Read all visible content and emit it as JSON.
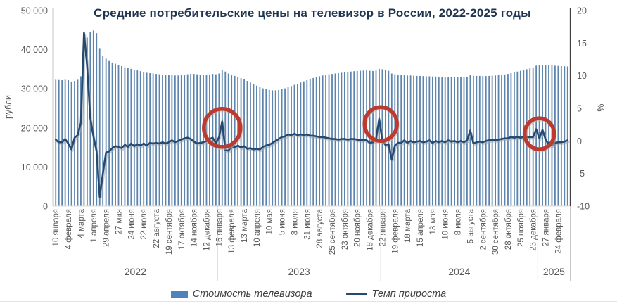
{
  "chart_data": {
    "type": "combo_bar_line",
    "title": "Средние потребительские цены на телевизор в России, 2022-2025 годы",
    "grid": false,
    "legend_position": "bottom",
    "left_axis": {
      "label": "рубли",
      "min": 0,
      "max": 50000,
      "ticks": [
        {
          "v": 0,
          "t": "0"
        },
        {
          "v": 10000,
          "t": "10 000"
        },
        {
          "v": 20000,
          "t": "20 000"
        },
        {
          "v": 30000,
          "t": "30 000"
        },
        {
          "v": 40000,
          "t": "40 000"
        },
        {
          "v": 50000,
          "t": "50 000"
        }
      ]
    },
    "right_axis": {
      "label": "%",
      "min": -10,
      "max": 20,
      "ticks": [
        {
          "v": -10,
          "t": "-10"
        },
        {
          "v": -5,
          "t": "-5"
        },
        {
          "v": 0,
          "t": "0"
        },
        {
          "v": 5,
          "t": "5"
        },
        {
          "v": 10,
          "t": "10"
        },
        {
          "v": 15,
          "t": "15"
        },
        {
          "v": 20,
          "t": "20"
        }
      ]
    },
    "x_unit": "week",
    "weeks_per_label": 4,
    "x_labels": [
      "10 января",
      "4 февраля",
      "4 марта",
      "1 апреля",
      "29 апреля",
      "27 мая",
      "24 июня",
      "22 июля",
      "22 августа",
      "19 сентября",
      "17 октября",
      "14 ноября",
      "12 декабря",
      "16 января",
      "13 февраля",
      "13 марта",
      "10 апреля",
      "10 мая",
      "5 июня",
      "3 июля",
      "31 июля",
      "28 августа",
      "25 сентября",
      "23 октября",
      "20 ноября",
      "18 декабря",
      "22 января",
      "19 февраля",
      "18 марта",
      "15 апреля",
      "13 мая",
      "10 июня",
      "8 июля",
      "5 августа",
      "2 сентября",
      "30 сентября",
      "28 октября",
      "25 ноября",
      "23 декабря",
      "27 января",
      "24 февраля"
    ],
    "year_groups": [
      {
        "label": "2022",
        "from_week": 0,
        "to_week": 52
      },
      {
        "label": "2023",
        "from_week": 52,
        "to_week": 104
      },
      {
        "label": "2024",
        "from_week": 104,
        "to_week": 154
      },
      {
        "label": "2025",
        "from_week": 154,
        "to_week": 164
      }
    ],
    "series": [
      {
        "name": "Стоимость телевизора",
        "type": "bar",
        "axis": "left",
        "color": "#5d84ad",
        "values": [
          32300,
          32250,
          32200,
          32300,
          32200,
          31850,
          32000,
          32300,
          33200,
          38700,
          43100,
          44600,
          44900,
          44200,
          40400,
          38400,
          37700,
          37100,
          36700,
          36400,
          36100,
          35800,
          35500,
          35300,
          35100,
          34900,
          34700,
          34500,
          34300,
          34100,
          34000,
          33900,
          33800,
          33700,
          33600,
          33500,
          33450,
          33450,
          33400,
          33400,
          33450,
          33550,
          33700,
          33800,
          33800,
          33700,
          33600,
          33550,
          33550,
          33650,
          33800,
          33700,
          33900,
          34900,
          34400,
          33900,
          33600,
          33300,
          33000,
          32700,
          32400,
          32000,
          31600,
          31200,
          30800,
          30400,
          30100,
          29900,
          29700,
          29600,
          29600,
          29700,
          29900,
          30100,
          30400,
          30700,
          31000,
          31300,
          31600,
          31900,
          32200,
          32500,
          32750,
          33000,
          33200,
          33400,
          33550,
          33700,
          33800,
          33900,
          34000,
          34100,
          34200,
          34300,
          34400,
          34500,
          34550,
          34600,
          34650,
          34700,
          34600,
          34550,
          34650,
          35100,
          35000,
          34800,
          34600,
          33900,
          33700,
          33600,
          33500,
          33500,
          33400,
          33400,
          33350,
          33300,
          33300,
          33250,
          33200,
          33200,
          33150,
          33150,
          33100,
          33100,
          33050,
          33050,
          33000,
          33000,
          32950,
          32950,
          32900,
          32950,
          33450,
          33350,
          33300,
          33300,
          33250,
          33250,
          33300,
          33350,
          33400,
          33450,
          33500,
          33650,
          33800,
          34000,
          34200,
          34400,
          34600,
          34800,
          35000,
          35200,
          35400,
          35900,
          36000,
          36100,
          36100,
          36050,
          35950,
          35900,
          35850,
          35800,
          35750,
          35700
        ]
      },
      {
        "name": "Темп прироста",
        "type": "line",
        "axis": "right",
        "color": "#25496f",
        "values": [
          0.2,
          -0.2,
          -0.2,
          0.3,
          -0.4,
          -1.3,
          0.5,
          0.9,
          2.8,
          16.6,
          11.4,
          3.5,
          0.7,
          -1.6,
          -8.6,
          -5.0,
          -1.8,
          -1.6,
          -1.1,
          -0.8,
          -0.9,
          -1.1,
          -0.6,
          -0.9,
          -0.4,
          -0.8,
          -0.5,
          -0.7,
          -0.4,
          -0.7,
          -0.3,
          -0.4,
          -0.3,
          -0.4,
          -0.2,
          -0.4,
          -0.2,
          0.1,
          -0.2,
          0.0,
          0.2,
          0.4,
          0.5,
          0.3,
          -0.1,
          -0.4,
          -0.3,
          -0.2,
          0.0,
          0.3,
          0.5,
          -0.4,
          0.6,
          3.0,
          -1.4,
          -1.5,
          -0.8,
          -1.0,
          -0.7,
          -1.0,
          -0.8,
          -1.2,
          -1.1,
          -1.3,
          -1.2,
          -1.3,
          -0.9,
          -0.7,
          -0.6,
          -0.3,
          0.0,
          0.3,
          0.6,
          0.7,
          1.0,
          0.9,
          1.1,
          0.9,
          1.0,
          0.9,
          1.0,
          0.8,
          0.8,
          0.7,
          0.6,
          0.6,
          0.5,
          0.4,
          0.3,
          0.3,
          0.2,
          0.3,
          0.3,
          0.2,
          0.3,
          0.3,
          0.2,
          0.1,
          0.2,
          0.1,
          -0.3,
          -0.2,
          0.3,
          3.4,
          0.0,
          -0.6,
          -0.5,
          -2.9,
          -0.7,
          -0.3,
          -0.3,
          0.1,
          -0.3,
          0.0,
          -0.2,
          -0.1,
          0.0,
          -0.2,
          -0.1,
          0.1,
          -0.3,
          0.0,
          -0.2,
          0.0,
          -0.2,
          0.1,
          -0.1,
          0.0,
          -0.2,
          0.0,
          -0.2,
          0.1,
          1.6,
          -0.4,
          -0.2,
          -0.1,
          -0.2,
          0.0,
          0.1,
          0.2,
          0.1,
          0.2,
          0.3,
          0.4,
          0.4,
          0.6,
          0.5,
          0.6,
          0.5,
          0.6,
          0.6,
          0.6,
          0.6,
          1.8,
          0.4,
          1.7,
          0.2,
          -0.5,
          -0.7,
          -0.3,
          -0.2,
          -0.2,
          -0.1,
          0.1
        ]
      }
    ],
    "annotations": [
      {
        "shape": "ellipse",
        "week": 53,
        "pct": 2.0,
        "rx": 26,
        "ry": 27
      },
      {
        "shape": "ellipse",
        "week": 103.5,
        "pct": 2.6,
        "rx": 23,
        "ry": 24
      },
      {
        "shape": "ellipse",
        "week": 154,
        "pct": 1.1,
        "rx": 21,
        "ry": 22
      }
    ],
    "annotation_color": "#bd3a2e"
  },
  "colors": {
    "title": "#1f3550",
    "tick_text": "#595959",
    "axis_line": "#404040",
    "separator_line": "#c9c9c9",
    "legend_bar_swatch": "#4f81bd",
    "legend_line_swatch": "#25496f"
  }
}
